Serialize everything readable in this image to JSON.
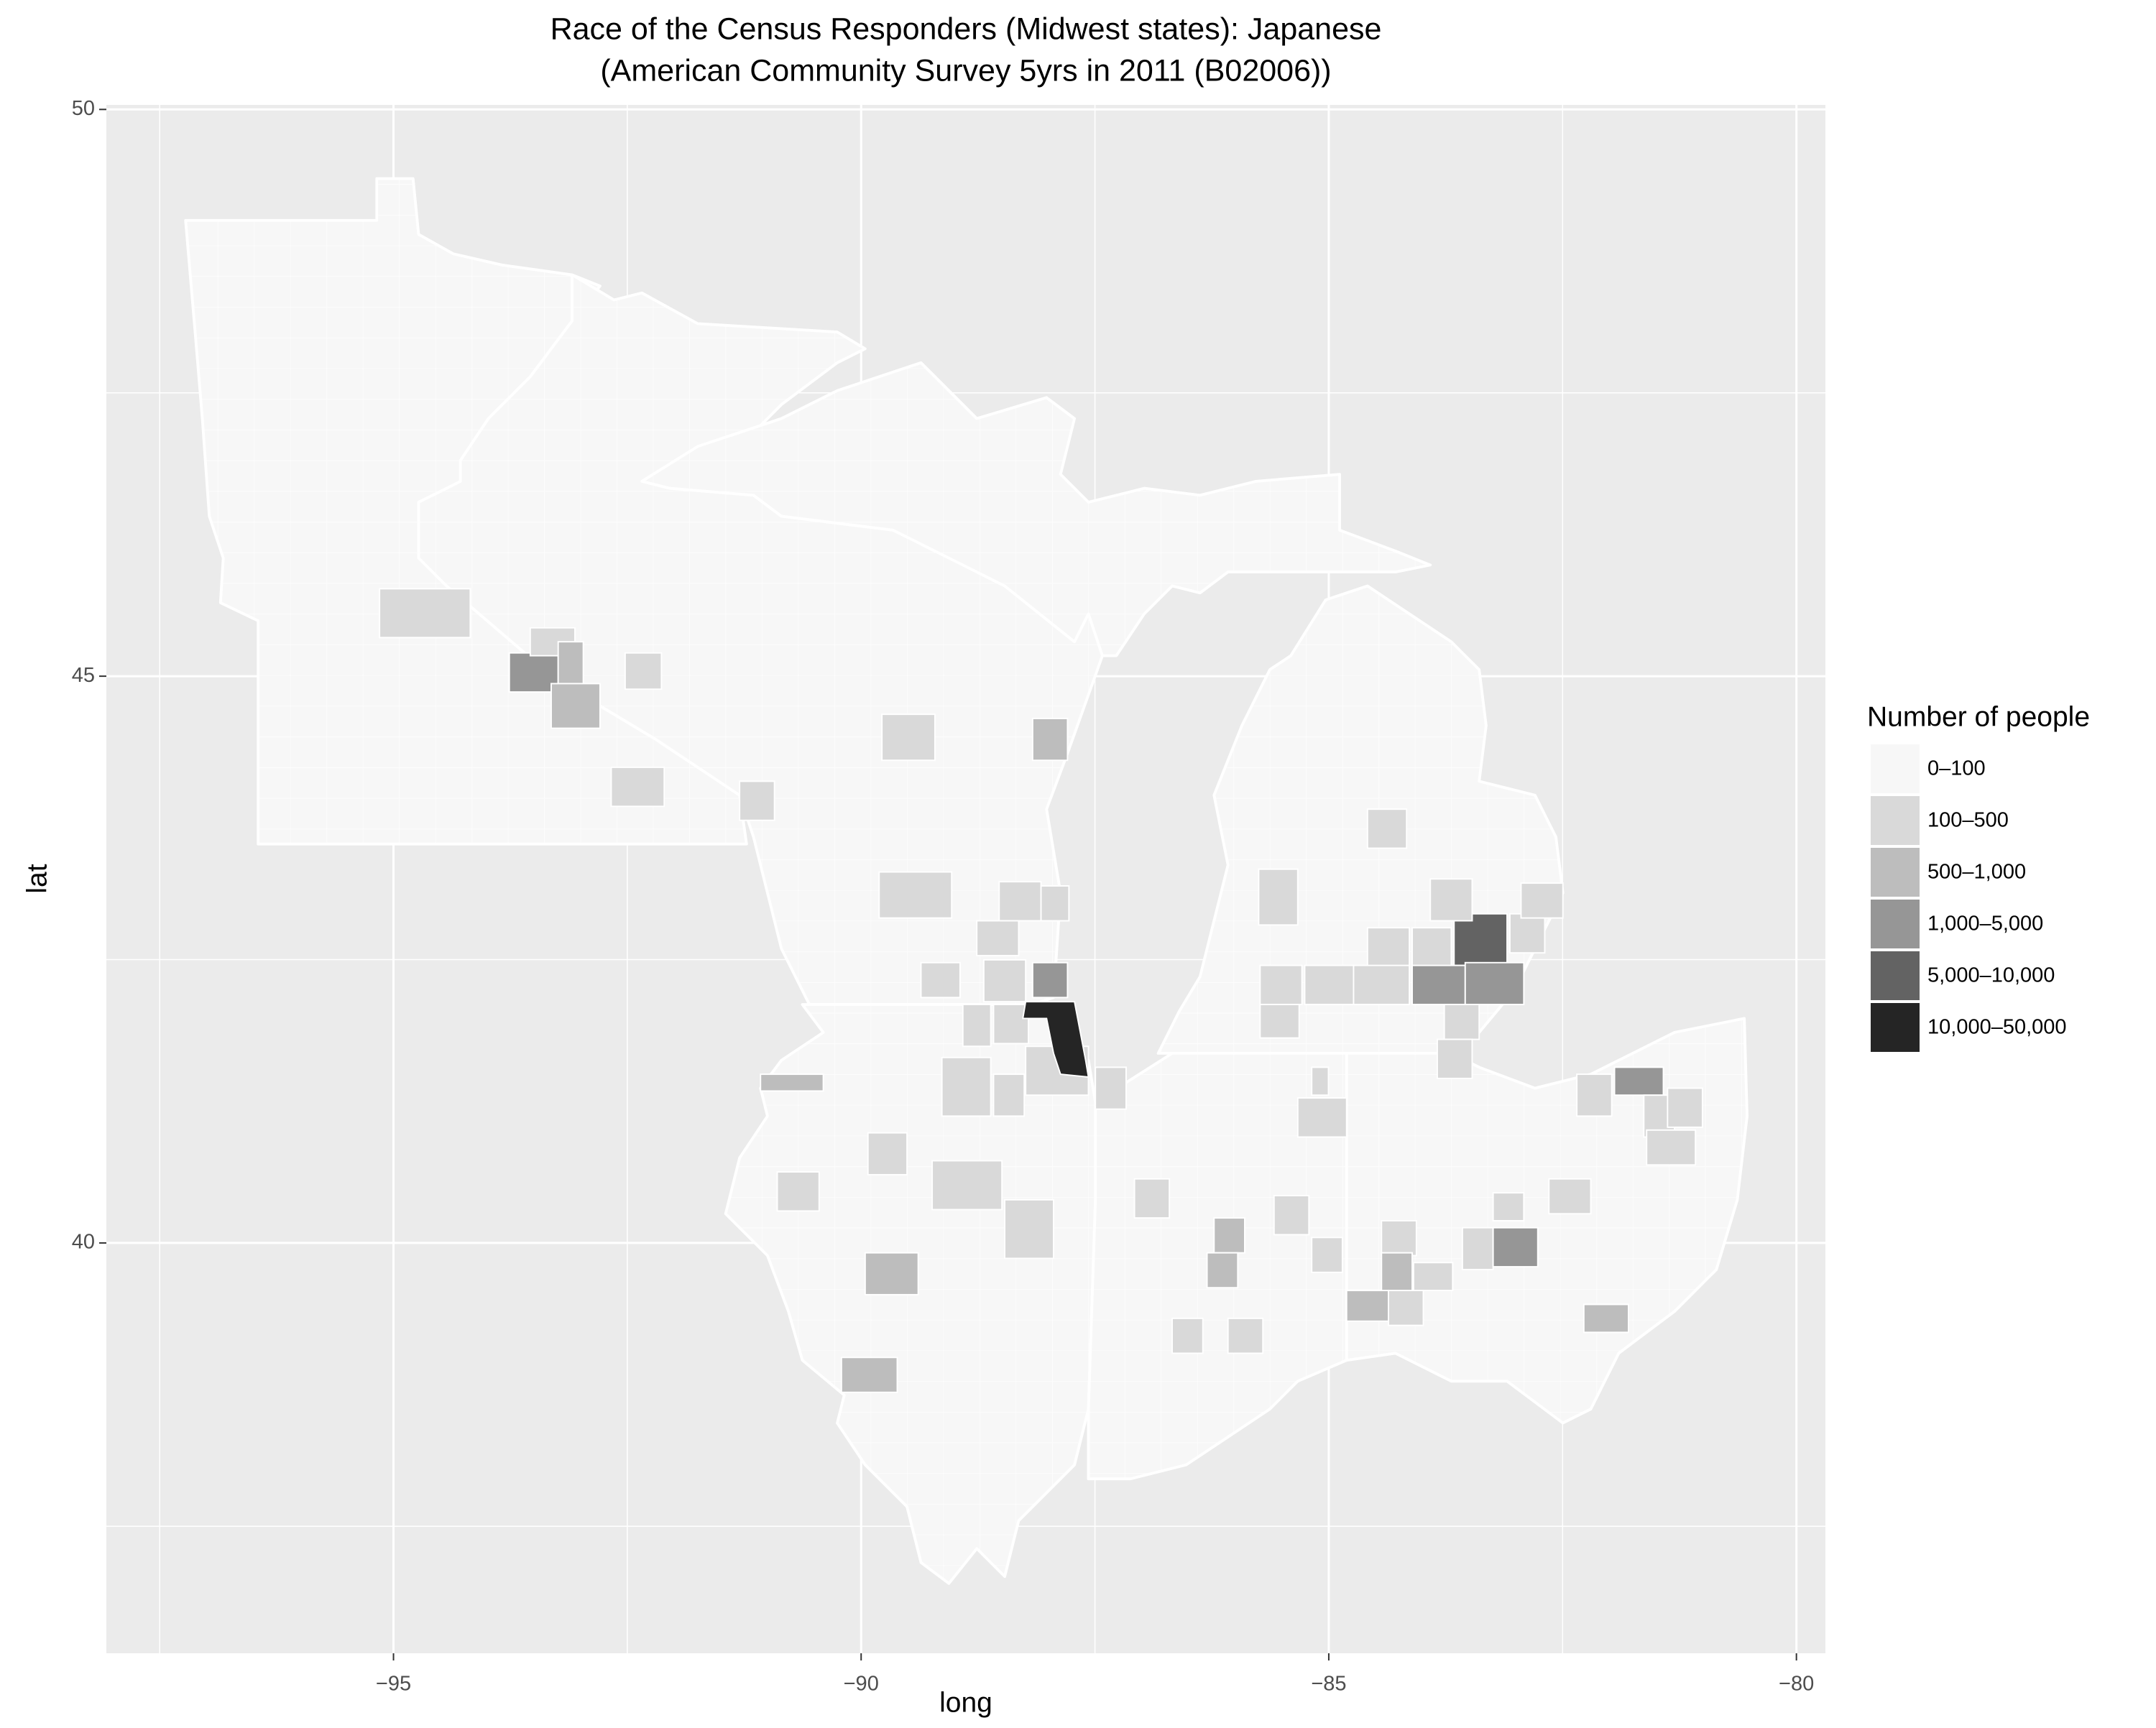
{
  "chart_data": {
    "type": "map",
    "title": "Race of the Census Responders (Midwest states): Japanese",
    "subtitle": "(American Community Survey 5yrs in 2011 (B02006))",
    "x_label": "long",
    "y_label": "lat",
    "xlim": [
      -98.07,
      -79.69
    ],
    "ylim": [
      36.38,
      50.04
    ],
    "xticks": [
      {
        "value": -95,
        "label": "−95"
      },
      {
        "value": -90,
        "label": "−90"
      },
      {
        "value": -85,
        "label": "−85"
      },
      {
        "value": -80,
        "label": "−80"
      }
    ],
    "yticks": [
      40,
      45,
      50
    ],
    "grid": true,
    "legend": {
      "title": "Number of people",
      "position": "right",
      "items": [
        {
          "label": "0–100",
          "color": "#f7f7f7"
        },
        {
          "label": "100–500",
          "color": "#d9d9d9"
        },
        {
          "label": "500–1,000",
          "color": "#bdbdbd"
        },
        {
          "label": "1,000–5,000",
          "color": "#969696"
        },
        {
          "label": "5,000–10,000",
          "color": "#636363"
        },
        {
          "label": "10,000–50,000",
          "color": "#252525"
        }
      ]
    }
  }
}
